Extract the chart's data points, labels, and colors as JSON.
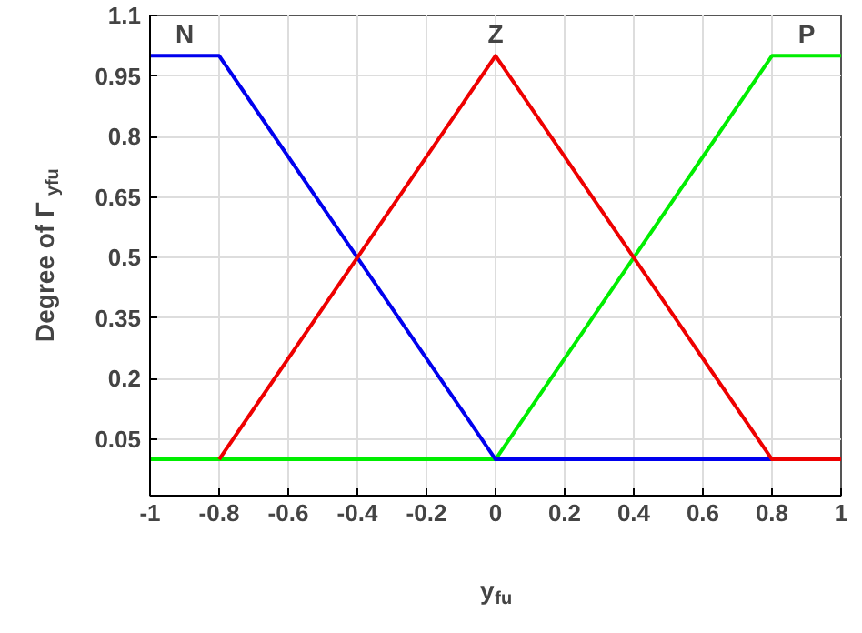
{
  "chart_data": {
    "type": "line",
    "xlabel": "y$_{fu}$",
    "ylabel": "Degree of Γ$_{yfu}$",
    "xlim": [
      -1,
      1
    ],
    "xticks": [
      -1,
      -0.8,
      -0.6,
      -0.4,
      -0.2,
      0,
      0.2,
      0.4,
      0.6,
      0.8,
      1
    ],
    "ylim": [
      -0.09,
      1.1
    ],
    "yticks": [
      0.05,
      0.2,
      0.35,
      0.5,
      0.65,
      0.8,
      0.95,
      1.1
    ],
    "grid": true,
    "marker": "none",
    "line_style": "solid",
    "series": [
      {
        "color": "#00ee00",
        "x": [
          -1,
          0,
          0.8,
          1
        ],
        "values": [
          0,
          0,
          1,
          1
        ]
      },
      {
        "color": "#0000ee",
        "x": [
          -1,
          -0.8,
          0,
          1
        ],
        "values": [
          1,
          1,
          0,
          0
        ]
      },
      {
        "color": "#ee0000",
        "x": [
          -0.8,
          0,
          0.8,
          1
        ],
        "values": [
          0,
          1,
          0,
          0
        ]
      }
    ],
    "annotations": [
      {
        "text": "N",
        "x": -0.9,
        "y": 1
      },
      {
        "text": "Z",
        "x": 0,
        "y": 1
      },
      {
        "text": "P",
        "x": 0.9,
        "y": 1
      }
    ]
  }
}
